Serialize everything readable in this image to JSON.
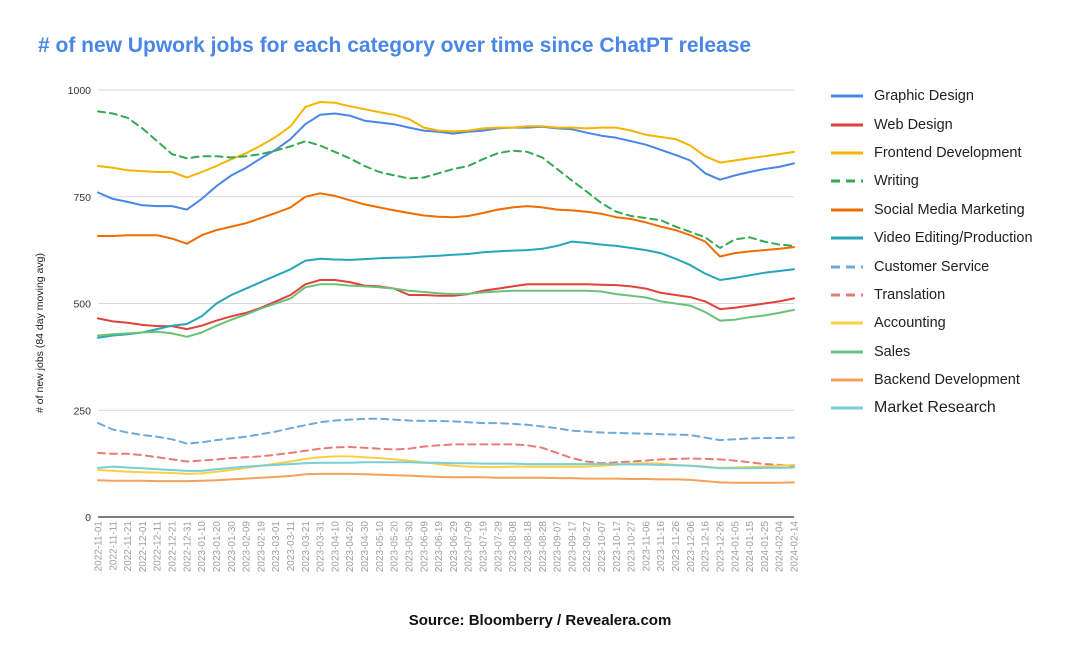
{
  "chart_data": {
    "type": "line",
    "title": "# of new Upwork jobs for each category over time since ChatPT release",
    "ylabel": "# of new jobs (84 day moving avg)",
    "xlabel": "",
    "ylim": [
      0,
      1000
    ],
    "yticks": [
      0,
      250,
      500,
      750,
      1000
    ],
    "grid": true,
    "legend_position": "right",
    "x": [
      "2022-11-01",
      "2022-11-11",
      "2022-11-21",
      "2022-12-01",
      "2022-12-11",
      "2022-12-21",
      "2022-12-31",
      "2023-01-10",
      "2023-01-20",
      "2023-01-30",
      "2023-02-09",
      "2023-02-19",
      "2023-03-01",
      "2023-03-11",
      "2023-03-21",
      "2023-03-31",
      "2023-04-10",
      "2023-04-20",
      "2023-04-30",
      "2023-05-10",
      "2023-05-20",
      "2023-05-30",
      "2023-06-09",
      "2023-06-19",
      "2023-06-29",
      "2023-07-09",
      "2023-07-19",
      "2023-07-29",
      "2023-08-08",
      "2023-08-18",
      "2023-08-28",
      "2023-09-07",
      "2023-09-17",
      "2023-09-27",
      "2023-10-07",
      "2023-10-17",
      "2023-10-27",
      "2023-11-06",
      "2023-11-16",
      "2023-11-26",
      "2023-12-06",
      "2023-12-16",
      "2023-12-26",
      "2024-01-05",
      "2024-01-15",
      "2024-01-25",
      "2024-02-04",
      "2024-02-14"
    ],
    "series": [
      {
        "name": "Graphic Design",
        "color": "#4a86e8",
        "dash": false,
        "values": [
          760,
          745,
          738,
          730,
          728,
          728,
          720,
          745,
          775,
          800,
          818,
          840,
          860,
          885,
          920,
          942,
          945,
          940,
          928,
          924,
          920,
          912,
          905,
          902,
          898,
          902,
          905,
          910,
          912,
          912,
          914,
          910,
          908,
          900,
          893,
          888,
          880,
          872,
          860,
          848,
          835,
          805,
          790,
          800,
          808,
          815,
          820,
          828
        ]
      },
      {
        "name": "Web Design",
        "color": "#e0423a",
        "dash": false,
        "values": [
          465,
          458,
          455,
          450,
          447,
          447,
          440,
          448,
          460,
          470,
          478,
          490,
          505,
          520,
          545,
          555,
          555,
          550,
          542,
          540,
          535,
          520,
          520,
          518,
          518,
          522,
          530,
          535,
          540,
          545,
          545,
          545,
          545,
          545,
          544,
          543,
          540,
          535,
          525,
          520,
          515,
          505,
          487,
          490,
          495,
          500,
          505,
          512
        ]
      },
      {
        "name": "Frontend Development",
        "color": "#f4b400",
        "dash": false,
        "values": [
          822,
          818,
          812,
          810,
          808,
          808,
          795,
          808,
          822,
          838,
          852,
          870,
          890,
          915,
          960,
          972,
          970,
          962,
          955,
          948,
          942,
          932,
          912,
          905,
          903,
          905,
          910,
          912,
          912,
          915,
          915,
          912,
          912,
          910,
          912,
          912,
          905,
          895,
          890,
          885,
          870,
          845,
          830,
          835,
          840,
          845,
          850,
          855
        ]
      },
      {
        "name": "Writing",
        "color": "#34a853",
        "dash": true,
        "values": [
          950,
          945,
          935,
          910,
          880,
          850,
          840,
          845,
          845,
          842,
          845,
          850,
          858,
          868,
          880,
          870,
          855,
          840,
          822,
          808,
          800,
          793,
          795,
          805,
          815,
          822,
          838,
          852,
          858,
          855,
          842,
          815,
          788,
          762,
          735,
          715,
          705,
          700,
          695,
          680,
          668,
          655,
          630,
          650,
          655,
          645,
          638,
          635
        ]
      },
      {
        "name": "Social Media Marketing",
        "color": "#ef6c00",
        "dash": false,
        "values": [
          658,
          658,
          660,
          660,
          660,
          652,
          640,
          660,
          672,
          680,
          688,
          700,
          712,
          725,
          750,
          758,
          752,
          742,
          732,
          725,
          718,
          712,
          706,
          703,
          702,
          705,
          712,
          720,
          725,
          728,
          725,
          720,
          718,
          715,
          710,
          702,
          698,
          690,
          680,
          672,
          660,
          645,
          610,
          618,
          622,
          625,
          628,
          632
        ]
      },
      {
        "name": "Video Editing/Production",
        "color": "#26a6b8",
        "dash": false,
        "values": [
          420,
          425,
          428,
          432,
          440,
          448,
          452,
          470,
          500,
          520,
          535,
          550,
          565,
          580,
          600,
          605,
          603,
          602,
          604,
          606,
          607,
          608,
          610,
          612,
          614,
          616,
          620,
          622,
          624,
          625,
          628,
          635,
          645,
          642,
          638,
          635,
          630,
          625,
          618,
          605,
          590,
          570,
          555,
          560,
          566,
          572,
          576,
          580
        ]
      },
      {
        "name": "Customer Service",
        "color": "#6fa8dc",
        "dash": true,
        "values": [
          220,
          205,
          198,
          192,
          188,
          182,
          172,
          175,
          180,
          184,
          188,
          194,
          200,
          208,
          215,
          222,
          226,
          228,
          230,
          230,
          228,
          226,
          225,
          225,
          224,
          222,
          220,
          220,
          218,
          216,
          212,
          208,
          202,
          200,
          198,
          197,
          196,
          195,
          194,
          193,
          192,
          186,
          180,
          182,
          184,
          185,
          185,
          186
        ]
      },
      {
        "name": "Translation",
        "color": "#e67c73",
        "dash": true,
        "values": [
          150,
          148,
          148,
          145,
          140,
          135,
          130,
          132,
          135,
          138,
          140,
          142,
          146,
          150,
          155,
          160,
          163,
          164,
          162,
          160,
          158,
          160,
          165,
          168,
          170,
          170,
          170,
          170,
          170,
          168,
          162,
          150,
          138,
          130,
          126,
          128,
          130,
          132,
          135,
          136,
          137,
          136,
          135,
          132,
          128,
          124,
          122,
          120
        ]
      },
      {
        "name": "Accounting",
        "color": "#fbd046",
        "dash": false,
        "values": [
          110,
          108,
          106,
          105,
          104,
          103,
          101,
          102,
          106,
          110,
          115,
          120,
          125,
          130,
          136,
          140,
          142,
          142,
          140,
          138,
          135,
          132,
          128,
          124,
          120,
          118,
          117,
          117,
          118,
          118,
          118,
          118,
          118,
          118,
          120,
          122,
          125,
          126,
          125,
          122,
          120,
          118,
          115,
          116,
          117,
          118,
          120,
          122
        ]
      },
      {
        "name": "Sales",
        "color": "#6cc17a",
        "dash": false,
        "values": [
          425,
          428,
          430,
          432,
          434,
          430,
          422,
          432,
          448,
          462,
          474,
          488,
          500,
          512,
          538,
          545,
          545,
          542,
          540,
          538,
          535,
          530,
          527,
          524,
          522,
          523,
          526,
          528,
          530,
          530,
          530,
          530,
          530,
          530,
          528,
          522,
          518,
          514,
          505,
          500,
          495,
          480,
          460,
          462,
          468,
          472,
          478,
          485
        ]
      },
      {
        "name": "Backend Development",
        "color": "#f6a15b",
        "dash": false,
        "values": [
          86,
          85,
          85,
          85,
          84,
          84,
          84,
          85,
          86,
          88,
          90,
          92,
          94,
          96,
          100,
          101,
          101,
          101,
          100,
          99,
          98,
          97,
          95,
          94,
          93,
          93,
          93,
          92,
          92,
          92,
          92,
          91,
          91,
          90,
          90,
          90,
          89,
          89,
          88,
          88,
          87,
          84,
          81,
          80,
          80,
          80,
          80,
          81
        ]
      },
      {
        "name": "Market Research",
        "color": "#78cfd6",
        "dash": false,
        "values": [
          115,
          118,
          116,
          114,
          112,
          110,
          108,
          108,
          112,
          115,
          118,
          120,
          122,
          124,
          126,
          127,
          127,
          127,
          128,
          128,
          128,
          128,
          127,
          127,
          126,
          126,
          125,
          125,
          125,
          124,
          124,
          124,
          124,
          124,
          124,
          124,
          123,
          123,
          122,
          121,
          120,
          117,
          114,
          114,
          114,
          115,
          115,
          116
        ]
      }
    ]
  },
  "source": "Source: Bloomberry / Revealera.com"
}
